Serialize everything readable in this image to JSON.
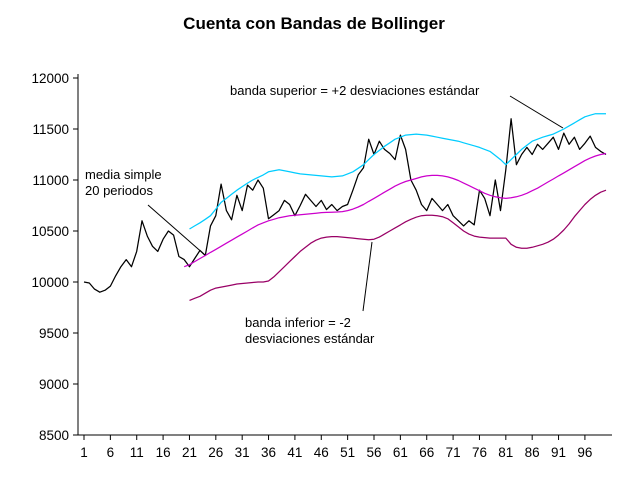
{
  "chart_data": {
    "type": "line",
    "title": "Cuenta con Bandas de Bollinger",
    "xlabel": "",
    "ylabel": "",
    "xlim": [
      1,
      100
    ],
    "ylim": [
      8500,
      12000
    ],
    "grid": false,
    "legend": "none",
    "xticks": [
      1,
      6,
      11,
      16,
      21,
      26,
      31,
      36,
      41,
      46,
      51,
      56,
      61,
      66,
      71,
      76,
      81,
      86,
      91,
      96
    ],
    "yticks": [
      8500,
      9000,
      9500,
      10000,
      10500,
      11000,
      11500,
      12000
    ],
    "series": [
      {
        "key": "cuenta",
        "name": "cuenta",
        "color": "#000000",
        "values": [
          10000,
          9990,
          9930,
          9900,
          9920,
          9960,
          10060,
          10150,
          10220,
          10150,
          10300,
          10600,
          10450,
          10350,
          10300,
          10420,
          10500,
          10460,
          10250,
          10220,
          10150,
          10230,
          10310,
          10260,
          10550,
          10650,
          10960,
          10700,
          10610,
          10850,
          10700,
          10950,
          10900,
          11000,
          10920,
          10620,
          10660,
          10700,
          10800,
          10760,
          10650,
          10750,
          10860,
          10800,
          10740,
          10800,
          10710,
          10760,
          10700,
          10740,
          10760,
          10900,
          11050,
          11120,
          11400,
          11250,
          11380,
          11300,
          11260,
          11200,
          11440,
          11300,
          11000,
          10900,
          10760,
          10700,
          10820,
          10760,
          10700,
          10760,
          10650,
          10600,
          10550,
          10600,
          10560,
          10900,
          10820,
          10650,
          11000,
          10700,
          11100,
          11600,
          11150,
          11250,
          11320,
          11250,
          11350,
          11300,
          11360,
          11420,
          11300,
          11460,
          11350,
          11420,
          11300,
          11360,
          11430,
          11320,
          11280,
          11250
        ]
      },
      {
        "key": "media",
        "name": "media simple 20 periodos",
        "color": "#CC00CC",
        "values": [
          null,
          null,
          null,
          null,
          null,
          null,
          null,
          null,
          null,
          null,
          null,
          null,
          null,
          null,
          null,
          null,
          null,
          null,
          null,
          10150,
          10170,
          10200,
          10230,
          10260,
          10290,
          10320,
          10350,
          10380,
          10410,
          10440,
          10470,
          10500,
          10530,
          10560,
          10580,
          10600,
          10615,
          10630,
          10640,
          10650,
          10655,
          10660,
          10665,
          10670,
          10675,
          10680,
          10682,
          10684,
          10686,
          10690,
          10700,
          10715,
          10735,
          10760,
          10790,
          10820,
          10850,
          10880,
          10910,
          10940,
          10965,
          10985,
          11000,
          11015,
          11030,
          11040,
          11045,
          11045,
          11040,
          11030,
          11015,
          10995,
          10970,
          10945,
          10920,
          10895,
          10870,
          10850,
          10835,
          10825,
          10820,
          10825,
          10835,
          10850,
          10870,
          10895,
          10920,
          10950,
          10980,
          11010,
          11040,
          11070,
          11100,
          11130,
          11160,
          11190,
          11215,
          11235,
          11250,
          11260
        ]
      },
      {
        "key": "banda_superior",
        "name": "banda superior = +2 desviaciones estandar",
        "color": "#00CCFF",
        "values": [
          null,
          null,
          null,
          null,
          null,
          null,
          null,
          null,
          null,
          null,
          null,
          null,
          null,
          null,
          null,
          null,
          null,
          null,
          null,
          null,
          10520,
          10550,
          10580,
          10615,
          10650,
          10715,
          10780,
          10820,
          10860,
          10900,
          10935,
          10970,
          11000,
          11025,
          11050,
          11080,
          11090,
          11100,
          11090,
          11080,
          11070,
          11060,
          11055,
          11050,
          11045,
          11040,
          11035,
          11030,
          11035,
          11040,
          11060,
          11080,
          11115,
          11150,
          11200,
          11250,
          11290,
          11330,
          11365,
          11400,
          11420,
          11440,
          11445,
          11450,
          11445,
          11440,
          11430,
          11420,
          11410,
          11400,
          11390,
          11380,
          11365,
          11350,
          11335,
          11320,
          11300,
          11280,
          11240,
          11200,
          11150,
          11200,
          11250,
          11300,
          11340,
          11380,
          11400,
          11420,
          11435,
          11450,
          11475,
          11500,
          11530,
          11560,
          11590,
          11620,
          11635,
          11650,
          11650,
          11650
        ]
      },
      {
        "key": "banda_inferior",
        "name": "banda inferior = -2 desviaciones estandar",
        "color": "#990066",
        "values": [
          null,
          null,
          null,
          null,
          null,
          null,
          null,
          null,
          null,
          null,
          null,
          null,
          null,
          null,
          null,
          null,
          null,
          null,
          null,
          null,
          9820,
          9840,
          9860,
          9890,
          9920,
          9940,
          9950,
          9960,
          9970,
          9980,
          9985,
          9990,
          9995,
          10000,
          10000,
          10010,
          10050,
          10100,
          10150,
          10200,
          10250,
          10300,
          10340,
          10380,
          10410,
          10430,
          10440,
          10445,
          10445,
          10440,
          10435,
          10430,
          10425,
          10420,
          10415,
          10420,
          10440,
          10470,
          10500,
          10530,
          10560,
          10590,
          10615,
          10635,
          10650,
          10655,
          10655,
          10650,
          10640,
          10620,
          10580,
          10540,
          10500,
          10470,
          10450,
          10440,
          10435,
          10430,
          10430,
          10430,
          10430,
          10370,
          10340,
          10330,
          10330,
          10340,
          10355,
          10370,
          10390,
          10420,
          10460,
          10510,
          10570,
          10640,
          10700,
          10760,
          10810,
          10850,
          10880,
          10900
        ]
      }
    ],
    "annotations": [
      {
        "lines": [
          "banda superior = +2 desviaciones estándar"
        ],
        "target": "banda superior"
      },
      {
        "lines": [
          "media simple",
          "20 periodos"
        ],
        "target": "media simple"
      },
      {
        "lines": [
          "banda inferior = -2",
          "desviaciones estándar"
        ],
        "target": "banda inferior"
      }
    ]
  }
}
